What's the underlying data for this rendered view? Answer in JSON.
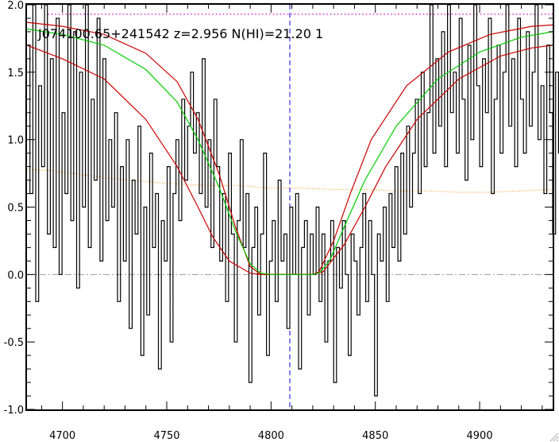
{
  "chart_data": {
    "type": "line",
    "title": "J074100.65+241542 z=2.956 N(HI)=21.20 1",
    "xlabel": "",
    "ylabel": "",
    "xlim": [
      4683,
      4935
    ],
    "ylim": [
      -1.0,
      2.0
    ],
    "x_ticks": [
      4700,
      4750,
      4800,
      4850,
      4900
    ],
    "y_ticks": [
      -1.0,
      -0.5,
      0.0,
      0.5,
      1.0,
      1.5,
      2.0
    ],
    "x_tick_labels": [
      "4700",
      "4750",
      "4800",
      "4850",
      "4900"
    ],
    "y_tick_labels": [
      "-1.0",
      "-0.5",
      "0.0",
      "0.5",
      "1.0",
      "1.5",
      "2.0"
    ],
    "absorber_center": 4809,
    "continuum_level": 1.93,
    "zero_level": 0.0,
    "dla_profile": {
      "x": [
        4683,
        4700,
        4720,
        4740,
        4755,
        4765,
        4775,
        4783,
        4790,
        4795,
        4800,
        4810,
        4820,
        4823,
        4828,
        4835,
        4845,
        4860,
        4880,
        4900,
        4920,
        4935
      ],
      "y": [
        1.82,
        1.78,
        1.7,
        1.52,
        1.28,
        1.0,
        0.65,
        0.32,
        0.08,
        0.01,
        0.0,
        0.0,
        0.0,
        0.01,
        0.1,
        0.35,
        0.7,
        1.1,
        1.45,
        1.65,
        1.76,
        1.8
      ]
    },
    "upper_bound": {
      "x": [
        4683,
        4700,
        4720,
        4740,
        4755,
        4765,
        4775,
        4783,
        4790,
        4795,
        4800,
        4810,
        4820,
        4823,
        4830,
        4838,
        4848,
        4865,
        4885,
        4905,
        4925,
        4935
      ],
      "y": [
        1.87,
        1.84,
        1.78,
        1.64,
        1.43,
        1.15,
        0.75,
        0.35,
        0.06,
        0.0,
        0.0,
        0.0,
        0.0,
        0.02,
        0.25,
        0.6,
        1.0,
        1.4,
        1.65,
        1.78,
        1.84,
        1.85
      ]
    },
    "lower_bound": {
      "x": [
        4683,
        4700,
        4720,
        4740,
        4755,
        4765,
        4772,
        4780,
        4790,
        4795,
        4800,
        4810,
        4820,
        4825,
        4835,
        4845,
        4855,
        4870,
        4890,
        4910,
        4925,
        4935
      ],
      "y": [
        1.7,
        1.6,
        1.45,
        1.15,
        0.8,
        0.5,
        0.28,
        0.1,
        0.01,
        0.0,
        0.0,
        0.0,
        0.0,
        0.02,
        0.22,
        0.5,
        0.8,
        1.15,
        1.45,
        1.62,
        1.68,
        1.7
      ]
    },
    "error_spectrum": {
      "x": [
        4683,
        4695,
        4710,
        4725,
        4740,
        4755,
        4770,
        4785,
        4800,
        4815,
        4830,
        4845,
        4860,
        4875,
        4890,
        4905,
        4920,
        4935
      ],
      "y": [
        0.78,
        0.77,
        0.74,
        0.71,
        0.69,
        0.67,
        0.66,
        0.66,
        0.64,
        0.64,
        0.63,
        0.63,
        0.62,
        0.62,
        0.61,
        0.61,
        0.62,
        0.63
      ]
    },
    "flux_spectrum": {
      "x_start": 4683,
      "x_step": 1.4,
      "y": [
        1.7,
        0.6,
        2.0,
        -0.2,
        1.4,
        0.8,
        2.0,
        0.3,
        1.6,
        0.2,
        1.9,
        0.0,
        1.2,
        0.6,
        2.0,
        0.4,
        1.8,
        -0.1,
        1.5,
        0.5,
        2.0,
        0.2,
        1.3,
        0.7,
        1.9,
        0.1,
        1.6,
        0.4,
        1.0,
        0.5,
        1.2,
        -0.2,
        0.8,
        0.1,
        1.0,
        -0.4,
        0.7,
        0.3,
        1.1,
        -0.6,
        0.5,
        -0.3,
        0.9,
        0.2,
        0.6,
        -0.7,
        0.4,
        0.1,
        0.8,
        -0.5,
        0.6,
        1.0,
        0.4,
        1.3,
        0.7,
        1.1,
        1.5,
        0.9,
        1.2,
        0.6,
        1.6,
        0.5,
        1.0,
        0.2,
        1.3,
        0.8,
        0.1,
        0.6,
        -0.2,
        0.9,
        0.3,
        -0.5,
        0.4,
        1.0,
        0.2,
        0.6,
        -0.8,
        0.2,
        0.5,
        -0.3,
        0.3,
        0.9,
        -0.6,
        0.1,
        0.4,
        -0.2,
        0.7,
        0.1,
        0.3,
        -0.4,
        0.5,
        0.0,
        0.6,
        -0.7,
        0.2,
        0.4,
        -0.3,
        0.3,
        0.0,
        0.5,
        -0.2,
        0.3,
        -0.5,
        0.1,
        0.4,
        -0.8,
        0.2,
        -0.1,
        0.4,
        0.0,
        -0.6,
        0.3,
        0.1,
        -0.3,
        0.2,
        0.6,
        -0.2,
        0.4,
        0.0,
        -0.9,
        0.3,
        0.1,
        0.5,
        -0.2,
        0.6,
        0.2,
        0.8,
        0.1,
        0.9,
        0.3,
        1.1,
        0.5,
        0.9,
        1.3,
        0.6,
        1.5,
        0.8,
        1.2,
        2.0,
        0.9,
        1.6,
        1.1,
        1.8,
        0.8,
        2.0,
        1.2,
        1.5,
        0.9,
        1.9,
        1.3,
        0.7,
        1.7,
        1.0,
        2.0,
        1.4,
        0.8,
        1.6,
        1.2,
        1.9,
        0.6,
        1.3,
        1.7,
        0.9,
        1.5,
        2.0,
        1.1,
        1.6,
        0.8,
        1.9,
        1.3,
        0.9,
        1.8,
        1.1,
        1.5,
        2.0,
        1.0,
        1.4,
        0.6,
        1.7,
        1.2,
        0.3,
        1.5,
        0.9,
        -0.8
      ]
    },
    "grid": false,
    "legend": "none",
    "colors": {
      "flux": "#000000",
      "profile": "#00cc00",
      "bounds": "#cc0000",
      "error": "#ffaa44",
      "continuum": "#cc00cc",
      "center_line": "#0000ee",
      "zero_line": "#999999"
    }
  }
}
